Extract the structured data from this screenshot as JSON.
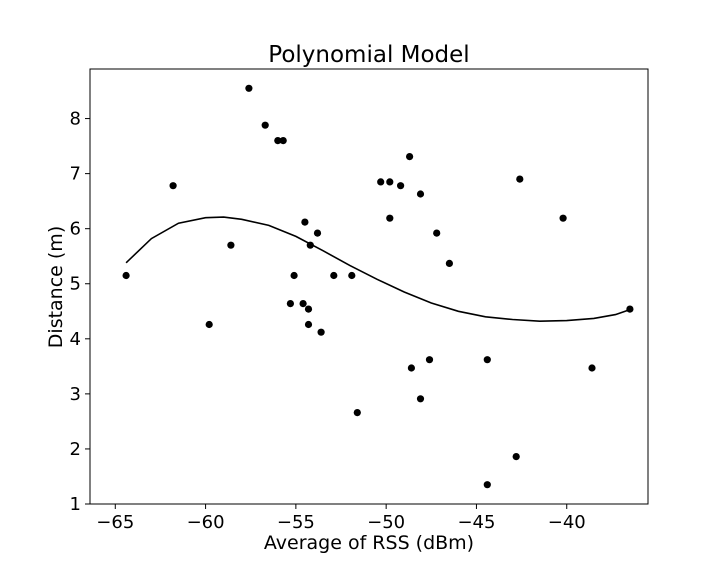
{
  "chart_data": {
    "type": "scatter",
    "title": "Polynomial Model",
    "xlabel": "Average of RSS (dBm)",
    "ylabel": "Distance (m)",
    "xlim": [
      -66.4,
      -35.5
    ],
    "ylim": [
      1.0,
      8.9
    ],
    "x_ticks": [
      -65,
      -60,
      -55,
      -50,
      -45,
      -40
    ],
    "x_tick_labels": [
      "−65",
      "−60",
      "−55",
      "−50",
      "−45",
      "−40"
    ],
    "y_ticks": [
      1,
      2,
      3,
      4,
      5,
      6,
      7,
      8
    ],
    "y_tick_labels": [
      "1",
      "2",
      "3",
      "4",
      "5",
      "6",
      "7",
      "8"
    ],
    "grid": false,
    "marker_color": "#000000",
    "line_color": "#000000",
    "series": [
      {
        "kind": "scatter",
        "points": [
          {
            "x": -64.4,
            "y": 5.15
          },
          {
            "x": -61.8,
            "y": 6.78
          },
          {
            "x": -59.8,
            "y": 4.26
          },
          {
            "x": -58.6,
            "y": 5.7
          },
          {
            "x": -57.6,
            "y": 8.55
          },
          {
            "x": -56.7,
            "y": 7.88
          },
          {
            "x": -56.0,
            "y": 7.6
          },
          {
            "x": -55.7,
            "y": 7.6
          },
          {
            "x": -55.3,
            "y": 4.64
          },
          {
            "x": -55.1,
            "y": 5.15
          },
          {
            "x": -54.6,
            "y": 4.64
          },
          {
            "x": -54.5,
            "y": 6.12
          },
          {
            "x": -54.3,
            "y": 4.54
          },
          {
            "x": -54.3,
            "y": 4.26
          },
          {
            "x": -54.2,
            "y": 5.7
          },
          {
            "x": -53.8,
            "y": 5.92
          },
          {
            "x": -53.6,
            "y": 4.12
          },
          {
            "x": -52.9,
            "y": 5.15
          },
          {
            "x": -51.9,
            "y": 5.15
          },
          {
            "x": -51.6,
            "y": 2.66
          },
          {
            "x": -50.3,
            "y": 6.85
          },
          {
            "x": -49.8,
            "y": 6.85
          },
          {
            "x": -49.8,
            "y": 6.19
          },
          {
            "x": -49.2,
            "y": 6.78
          },
          {
            "x": -48.7,
            "y": 7.31
          },
          {
            "x": -48.6,
            "y": 3.47
          },
          {
            "x": -48.1,
            "y": 6.63
          },
          {
            "x": -48.1,
            "y": 2.91
          },
          {
            "x": -47.6,
            "y": 3.62
          },
          {
            "x": -47.2,
            "y": 5.92
          },
          {
            "x": -46.5,
            "y": 5.37
          },
          {
            "x": -44.4,
            "y": 3.62
          },
          {
            "x": -44.4,
            "y": 1.35
          },
          {
            "x": -42.8,
            "y": 1.86
          },
          {
            "x": -42.6,
            "y": 6.9
          },
          {
            "x": -40.2,
            "y": 6.19
          },
          {
            "x": -38.6,
            "y": 3.47
          },
          {
            "x": -36.5,
            "y": 4.54
          }
        ]
      },
      {
        "kind": "line",
        "points": [
          {
            "x": -64.4,
            "y": 5.38
          },
          {
            "x": -63.0,
            "y": 5.82
          },
          {
            "x": -61.5,
            "y": 6.1
          },
          {
            "x": -60.0,
            "y": 6.2
          },
          {
            "x": -59.0,
            "y": 6.21
          },
          {
            "x": -58.0,
            "y": 6.17
          },
          {
            "x": -56.5,
            "y": 6.06
          },
          {
            "x": -55.0,
            "y": 5.86
          },
          {
            "x": -53.5,
            "y": 5.6
          },
          {
            "x": -52.0,
            "y": 5.33
          },
          {
            "x": -50.5,
            "y": 5.08
          },
          {
            "x": -49.0,
            "y": 4.85
          },
          {
            "x": -47.5,
            "y": 4.65
          },
          {
            "x": -46.0,
            "y": 4.5
          },
          {
            "x": -44.5,
            "y": 4.4
          },
          {
            "x": -43.0,
            "y": 4.35
          },
          {
            "x": -41.5,
            "y": 4.32
          },
          {
            "x": -40.0,
            "y": 4.33
          },
          {
            "x": -38.5,
            "y": 4.37
          },
          {
            "x": -37.3,
            "y": 4.44
          },
          {
            "x": -36.5,
            "y": 4.53
          }
        ]
      }
    ]
  }
}
